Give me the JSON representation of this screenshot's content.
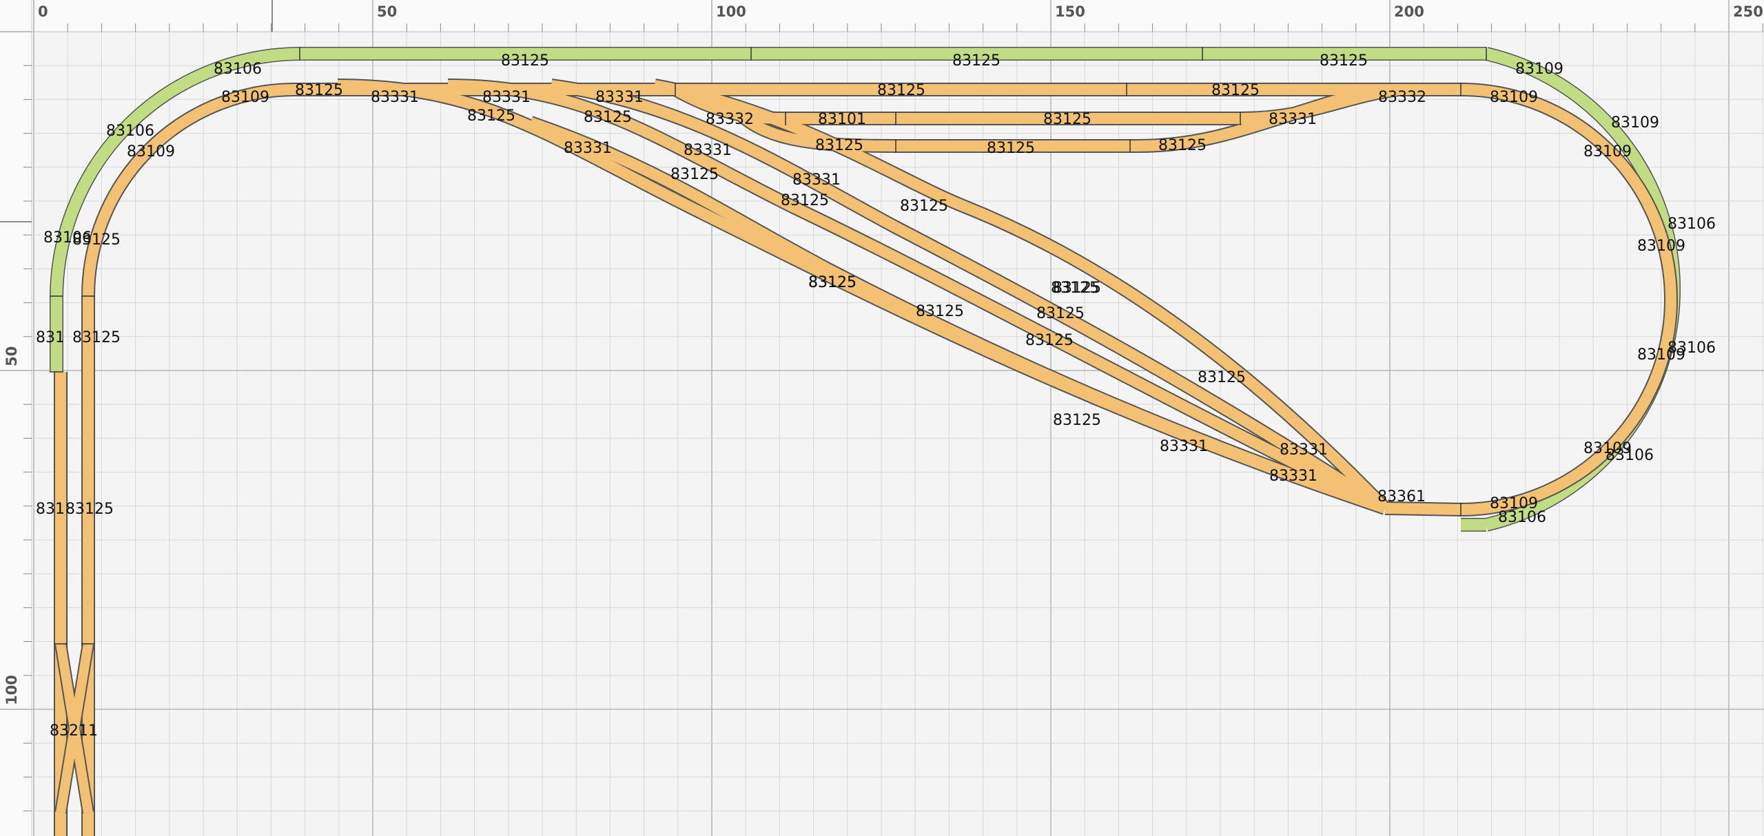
{
  "view": {
    "ruler": {
      "x_labels": [
        "0",
        "50",
        "100",
        "150",
        "200",
        "250"
      ],
      "y_labels": [
        "50",
        "100"
      ],
      "x_units": [
        0,
        50,
        100,
        150,
        200,
        250
      ],
      "y_units": [
        50,
        100
      ]
    },
    "colors": {
      "background": "#f4f4f4",
      "ruler": "#f9f9f9",
      "grid_minor": "#d8d8d8",
      "grid_major": "#a9a9a9",
      "track_orange": "#f3c173",
      "track_green": "#c2dc84",
      "track_edge": "#555555"
    }
  },
  "track_labels": [
    {
      "name": "piece-83106",
      "text": "83106"
    },
    {
      "name": "piece-83125",
      "text": "83125"
    },
    {
      "name": "piece-83125",
      "text": "83125"
    },
    {
      "name": "piece-83125",
      "text": "83125"
    },
    {
      "name": "piece-83109",
      "text": "83109"
    },
    {
      "name": "piece-83109",
      "text": "83109"
    },
    {
      "name": "piece-83125",
      "text": "83125"
    },
    {
      "name": "piece-83331",
      "text": "83331"
    },
    {
      "name": "piece-83331",
      "text": "83331"
    },
    {
      "name": "piece-83331",
      "text": "83331"
    },
    {
      "name": "piece-83125",
      "text": "83125"
    },
    {
      "name": "piece-83125",
      "text": "83125"
    },
    {
      "name": "piece-83332",
      "text": "83332"
    },
    {
      "name": "piece-83109",
      "text": "83109"
    },
    {
      "name": "piece-83106",
      "text": "83106"
    },
    {
      "name": "piece-83109",
      "text": "83109"
    },
    {
      "name": "piece-83125",
      "text": "83125"
    },
    {
      "name": "piece-83125",
      "text": "83125"
    },
    {
      "name": "piece-83332",
      "text": "83332"
    },
    {
      "name": "piece-83101",
      "text": "83101"
    },
    {
      "name": "piece-83125",
      "text": "83125"
    },
    {
      "name": "piece-83331",
      "text": "83331"
    },
    {
      "name": "piece-83109",
      "text": "83109"
    },
    {
      "name": "piece-83109",
      "text": "83109"
    },
    {
      "name": "piece-83125",
      "text": "83125"
    },
    {
      "name": "piece-83125",
      "text": "83125"
    },
    {
      "name": "piece-83125",
      "text": "83125"
    },
    {
      "name": "piece-83331",
      "text": "83331"
    },
    {
      "name": "piece-83125",
      "text": "83125"
    },
    {
      "name": "piece-83331",
      "text": "83331"
    },
    {
      "name": "piece-83331",
      "text": "83331"
    },
    {
      "name": "piece-83125",
      "text": "83125"
    },
    {
      "name": "piece-83125",
      "text": "83125"
    },
    {
      "name": "piece-83125",
      "text": "83125"
    },
    {
      "name": "piece-83106",
      "text": "83106"
    },
    {
      "name": "piece-83109",
      "text": "83109"
    },
    {
      "name": "piece-83106",
      "text": "83106"
    },
    {
      "name": "piece-83109",
      "text": "83109"
    },
    {
      "name": "piece-83106",
      "text": "83106"
    },
    {
      "name": "piece-83125",
      "text": "83125"
    },
    {
      "name": "piece-83125",
      "text": "83125"
    },
    {
      "name": "piece-83125",
      "text": "83125"
    },
    {
      "name": "piece-83125",
      "text": "83125"
    },
    {
      "name": "piece-83125",
      "text": "83125"
    },
    {
      "name": "piece-83125",
      "text": "83125"
    },
    {
      "name": "piece-83125",
      "text": "83125"
    },
    {
      "name": "piece-83331",
      "text": "83331"
    },
    {
      "name": "piece-83331",
      "text": "83331"
    },
    {
      "name": "piece-83331",
      "text": "83331"
    },
    {
      "name": "piece-83361",
      "text": "83361"
    },
    {
      "name": "piece-83109",
      "text": "83109"
    },
    {
      "name": "piece-83106",
      "text": "83106"
    },
    {
      "name": "piece-83109",
      "text": "83109"
    },
    {
      "name": "piece-83106",
      "text": "83106"
    },
    {
      "name": "piece-83125",
      "text": "83125"
    },
    {
      "name": "piece-83125",
      "text": "83125"
    },
    {
      "name": "piece-83125",
      "text": "83125"
    },
    {
      "name": "piece-83125",
      "text": "83125"
    },
    {
      "name": "piece-83211",
      "text": "83211"
    },
    {
      "name": "piece-831",
      "text": "831"
    },
    {
      "name": "piece-831",
      "text": "831"
    }
  ]
}
